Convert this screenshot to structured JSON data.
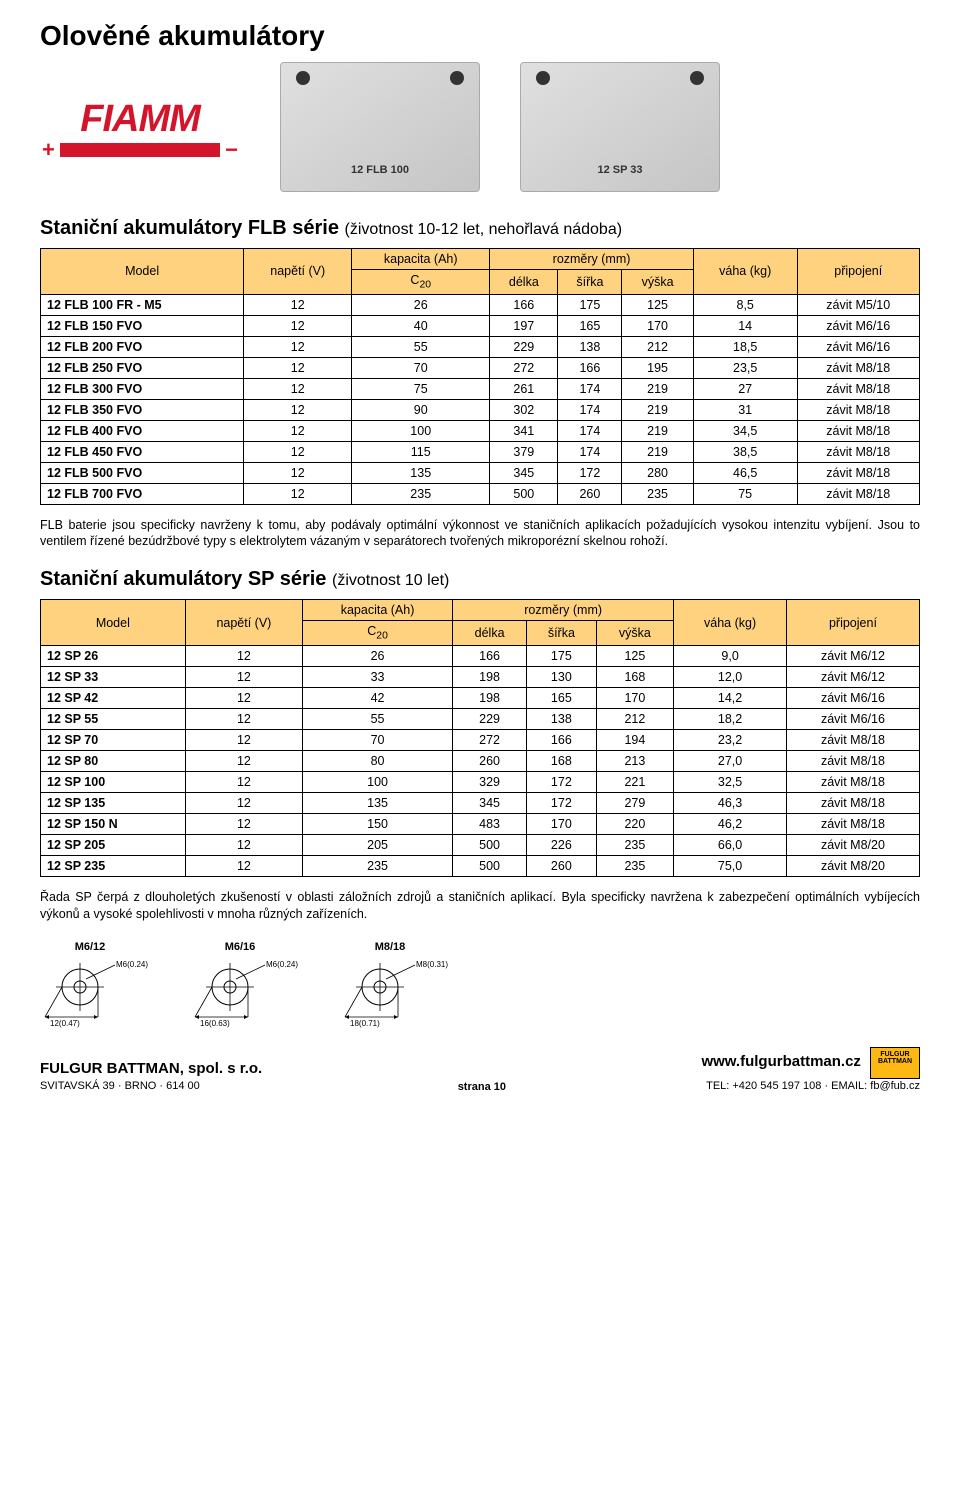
{
  "page_title": "Olověné akumulátory",
  "logo": {
    "brand": "FIAMM"
  },
  "battery_images": [
    {
      "label": "12 FLB 100"
    },
    {
      "label": "12 SP 33"
    }
  ],
  "section1": {
    "title": "Staniční akumulátory FLB série",
    "subtitle": "(životnost 10-12 let, nehořlavá nádoba)",
    "header": {
      "model": "Model",
      "voltage": "napětí (V)",
      "capacity": "kapacita (Ah)",
      "c20": "C",
      "c20_sub": "20",
      "dims": "rozměry (mm)",
      "length": "délka",
      "width": "šířka",
      "height": "výška",
      "weight": "váha (kg)",
      "conn": "připojení"
    },
    "rows": [
      {
        "model": "12 FLB 100 FR - M5",
        "v": "12",
        "c": "26",
        "l": "166",
        "w": "175",
        "h": "125",
        "kg": "8,5",
        "conn": "závit M5/10"
      },
      {
        "model": "12 FLB 150 FVO",
        "v": "12",
        "c": "40",
        "l": "197",
        "w": "165",
        "h": "170",
        "kg": "14",
        "conn": "závit M6/16"
      },
      {
        "model": "12 FLB 200 FVO",
        "v": "12",
        "c": "55",
        "l": "229",
        "w": "138",
        "h": "212",
        "kg": "18,5",
        "conn": "závit M6/16"
      },
      {
        "model": "12 FLB 250 FVO",
        "v": "12",
        "c": "70",
        "l": "272",
        "w": "166",
        "h": "195",
        "kg": "23,5",
        "conn": "závit M8/18"
      },
      {
        "model": "12 FLB 300 FVO",
        "v": "12",
        "c": "75",
        "l": "261",
        "w": "174",
        "h": "219",
        "kg": "27",
        "conn": "závit M8/18"
      },
      {
        "model": "12 FLB 350 FVO",
        "v": "12",
        "c": "90",
        "l": "302",
        "w": "174",
        "h": "219",
        "kg": "31",
        "conn": "závit M8/18"
      },
      {
        "model": "12 FLB 400 FVO",
        "v": "12",
        "c": "100",
        "l": "341",
        "w": "174",
        "h": "219",
        "kg": "34,5",
        "conn": "závit M8/18"
      },
      {
        "model": "12 FLB 450 FVO",
        "v": "12",
        "c": "115",
        "l": "379",
        "w": "174",
        "h": "219",
        "kg": "38,5",
        "conn": "závit M8/18"
      },
      {
        "model": "12 FLB 500 FVO",
        "v": "12",
        "c": "135",
        "l": "345",
        "w": "172",
        "h": "280",
        "kg": "46,5",
        "conn": "závit M8/18"
      },
      {
        "model": "12 FLB 700 FVO",
        "v": "12",
        "c": "235",
        "l": "500",
        "w": "260",
        "h": "235",
        "kg": "75",
        "conn": "závit M8/18"
      }
    ],
    "para": "FLB baterie jsou specificky navrženy k tomu, aby podávaly optimální výkonnost ve staničních aplikacích požadujících vysokou intenzitu vybíjení. Jsou to ventilem řízené bezúdržbové typy s elektrolytem vázaným v separátorech tvořených mikroporézní skelnou rohoží."
  },
  "section2": {
    "title": "Staniční akumulátory SP série",
    "subtitle": "(životnost 10 let)",
    "rows": [
      {
        "model": "12 SP 26",
        "v": "12",
        "c": "26",
        "l": "166",
        "w": "175",
        "h": "125",
        "kg": "9,0",
        "conn": "závit M6/12"
      },
      {
        "model": "12 SP 33",
        "v": "12",
        "c": "33",
        "l": "198",
        "w": "130",
        "h": "168",
        "kg": "12,0",
        "conn": "závit M6/12"
      },
      {
        "model": "12 SP 42",
        "v": "12",
        "c": "42",
        "l": "198",
        "w": "165",
        "h": "170",
        "kg": "14,2",
        "conn": "závit M6/16"
      },
      {
        "model": "12 SP 55",
        "v": "12",
        "c": "55",
        "l": "229",
        "w": "138",
        "h": "212",
        "kg": "18,2",
        "conn": "závit M6/16"
      },
      {
        "model": "12 SP 70",
        "v": "12",
        "c": "70",
        "l": "272",
        "w": "166",
        "h": "194",
        "kg": "23,2",
        "conn": "závit M8/18"
      },
      {
        "model": "12 SP 80",
        "v": "12",
        "c": "80",
        "l": "260",
        "w": "168",
        "h": "213",
        "kg": "27,0",
        "conn": "závit M8/18"
      },
      {
        "model": "12 SP 100",
        "v": "12",
        "c": "100",
        "l": "329",
        "w": "172",
        "h": "221",
        "kg": "32,5",
        "conn": "závit M8/18"
      },
      {
        "model": "12 SP 135",
        "v": "12",
        "c": "135",
        "l": "345",
        "w": "172",
        "h": "279",
        "kg": "46,3",
        "conn": "závit M8/18"
      },
      {
        "model": "12 SP 150 N",
        "v": "12",
        "c": "150",
        "l": "483",
        "w": "170",
        "h": "220",
        "kg": "46,2",
        "conn": "závit M8/18"
      },
      {
        "model": "12 SP 205",
        "v": "12",
        "c": "205",
        "l": "500",
        "w": "226",
        "h": "235",
        "kg": "66,0",
        "conn": "závit M8/20"
      },
      {
        "model": "12 SP 235",
        "v": "12",
        "c": "235",
        "l": "500",
        "w": "260",
        "h": "235",
        "kg": "75,0",
        "conn": "závit M8/20"
      }
    ],
    "para": "Řada SP čerpá z dlouholetých zkušeností v oblasti záložních zdrojů a staničních aplikací. Byla specificky navržena k zabezpečení optimálních vybíjecích výkonů a vysoké spolehlivosti v mnoha různých zařízeních."
  },
  "terminals": [
    {
      "label": "M6/12",
      "top": "M6(0.24)",
      "bottom": "12(0.47)"
    },
    {
      "label": "M6/16",
      "top": "M6(0.24)",
      "bottom": "16(0.63)"
    },
    {
      "label": "M8/18",
      "top": "M8(0.31)",
      "bottom": "18(0.71)"
    }
  ],
  "footer": {
    "company": "FULGUR BATTMAN, spol. s r.o.",
    "address": "SVITAVSKÁ 39 · BRNO · 614 00",
    "page": "strana 10",
    "url": "www.fulgurbattman.cz",
    "contact": "TEL: +420 545 197 108 · EMAIL: fb@fub.cz",
    "badge1": "FULGUR",
    "badge2": "BATTMAN"
  },
  "colors": {
    "header_bg": "#ffd27f",
    "brand_red": "#d4142a",
    "badge_bg": "#fdb813"
  }
}
